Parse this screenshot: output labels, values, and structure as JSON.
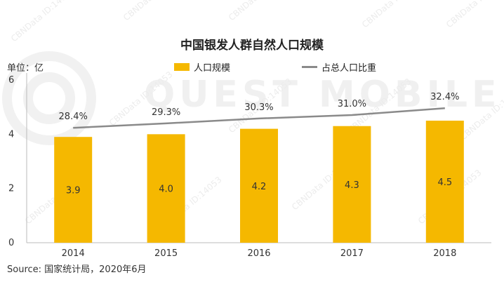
{
  "title": "中国银发人群自然人口规模",
  "unit_label": "单位：亿",
  "legend": {
    "bar_label": "人口规模",
    "line_label": "占总人口比重"
  },
  "source": "Source:  国家统计局，2020年6月",
  "watermark": {
    "brand": "QUEST MOBILE",
    "id_text": "CBNData ID:14053"
  },
  "colors": {
    "bar": "#F5B800",
    "line": "#8a8a8a",
    "axis": "#bbbbbb"
  },
  "chart_data": {
    "type": "bar",
    "categories": [
      "2014",
      "2015",
      "2016",
      "2017",
      "2018"
    ],
    "series": [
      {
        "name": "人口规模",
        "type": "bar",
        "values": [
          3.9,
          4.0,
          4.2,
          4.3,
          4.5
        ],
        "labels": [
          "3.9",
          "4.0",
          "4.2",
          "4.3",
          "4.5"
        ]
      },
      {
        "name": "占总人口比重",
        "type": "line",
        "values": [
          28.4,
          29.3,
          30.3,
          31.0,
          32.4
        ],
        "labels": [
          "28.4%",
          "29.3%",
          "30.3%",
          "31.0%",
          "32.4%"
        ]
      }
    ],
    "ylim": [
      0,
      6
    ],
    "yticks": [
      "0",
      "2",
      "4",
      "6"
    ],
    "grid": false,
    "legend_position": "top"
  }
}
